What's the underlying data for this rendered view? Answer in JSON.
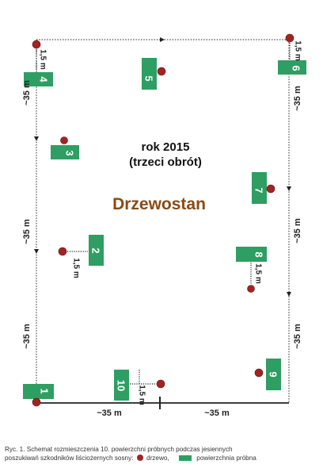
{
  "diagram": {
    "year_label": "rok 2015",
    "rotation_label": "(trzeci obrót)",
    "stand_label": "Drzewostan",
    "colors": {
      "plot": "#2e9e62",
      "tree": "#a52222",
      "line": "#222222",
      "stand_text": "#8b4a14"
    },
    "plots": [
      {
        "label": "1"
      },
      {
        "label": "2"
      },
      {
        "label": "3"
      },
      {
        "label": "4"
      },
      {
        "label": "5"
      },
      {
        "label": "6"
      },
      {
        "label": "7"
      },
      {
        "label": "8"
      },
      {
        "label": "9"
      },
      {
        "label": "10"
      }
    ],
    "offsets": [
      "1,5 m",
      "1,5 m",
      "1,5 m",
      "1,5 m",
      "1,5 m"
    ],
    "distances_left": [
      "~35 m",
      "~35 m",
      "~35 m"
    ],
    "distances_right": [
      "~35 m",
      "~35 m",
      "~35 m"
    ],
    "distances_bottom": [
      "~35 m",
      "~35 m"
    ]
  },
  "caption": {
    "line1": "Ryc. 1. Schemat rozmieszczenia 10. powierzchni próbnych podczas jesiennych",
    "line2_text": "poszukiwań szkodników liściożernych sosny:",
    "tree_legend": "drzewo,",
    "plot_legend": "powierzchnia próbna"
  }
}
